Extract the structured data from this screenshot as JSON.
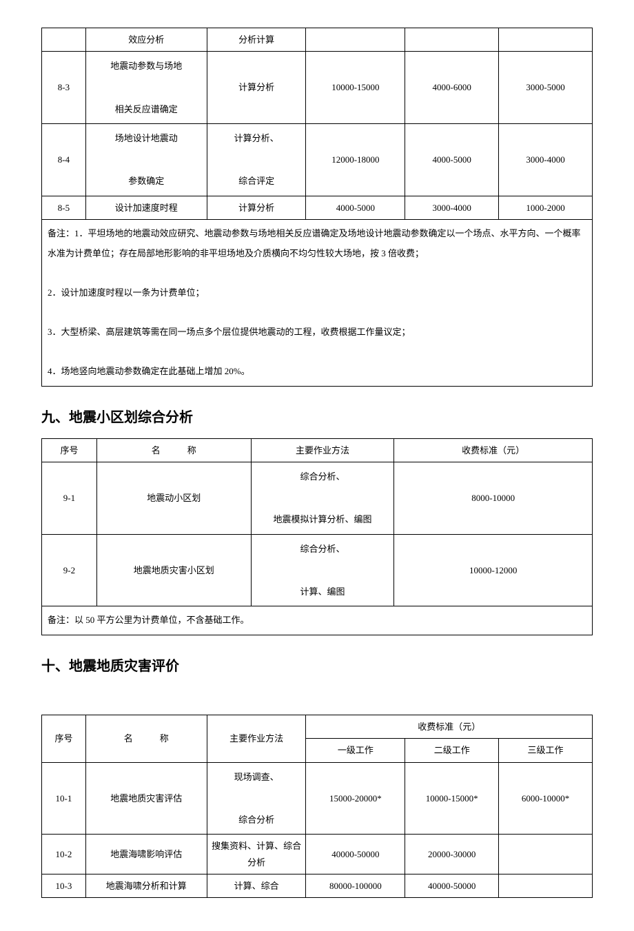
{
  "table8": {
    "rows": [
      {
        "id": "",
        "name": "效应分析",
        "method": "分析计算",
        "c1": "",
        "c2": "",
        "c3": ""
      },
      {
        "id": "8-3",
        "name": "地震动参数与场地\n\n相关反应谱确定",
        "method": "计算分析",
        "c1": "10000-15000",
        "c2": "4000-6000",
        "c3": "3000-5000"
      },
      {
        "id": "8-4",
        "name": "场地设计地震动\n\n参数确定",
        "method": "计算分析、\n\n综合评定",
        "c1": "12000-18000",
        "c2": "4000-5000",
        "c3": "3000-4000"
      },
      {
        "id": "8-5",
        "name": "设计加速度时程",
        "method": "计算分析",
        "c1": "4000-5000",
        "c2": "3000-4000",
        "c3": "1000-2000"
      }
    ],
    "note": "备注：1．平坦场地的地震动效应研究、地震动参数与场地相关反应谱确定及场地设计地震动参数确定以一个场点、水平方向、一个概率水准为计费单位；存在局部地形影响的非平坦场地及介质横向不均匀性较大场地，按 3 倍收费；\n\n2．设计加速度时程以一条为计费单位；\n\n3．大型桥梁、高层建筑等需在同一场点多个层位提供地震动的工程，收费根据工作量议定；\n\n4．场地竖向地震动参数确定在此基础上增加 20%。"
  },
  "section9": {
    "title": "九、地震小区划综合分析",
    "headers": {
      "seq": "序号",
      "name": "名　　　称",
      "method": "主要作业方法",
      "fee": "收费标准（元）"
    },
    "rows": [
      {
        "id": "9-1",
        "name": "地震动小区划",
        "method": "综合分析、\n\n地震模拟计算分析、编图",
        "fee": "8000-10000"
      },
      {
        "id": "9-2",
        "name": "地震地质灾害小区划",
        "method": "综合分析、\n\n计算、编图",
        "fee": "10000-12000"
      }
    ],
    "note": "备注：以 50 平方公里为计费单位，不含基础工作。"
  },
  "section10": {
    "title": "十、地震地质灾害评价",
    "headers": {
      "seq": "序号",
      "name": "名　　　称",
      "method": "主要作业方法",
      "fee": "收费标准（元）",
      "l1": "一级工作",
      "l2": "二级工作",
      "l3": "三级工作"
    },
    "rows": [
      {
        "id": "10-1",
        "name": "地震地质灾害评估",
        "method": "现场调查、\n\n综合分析",
        "c1": "15000-20000*",
        "c2": "10000-15000*",
        "c3": "6000-10000*"
      },
      {
        "id": "10-2",
        "name": "地震海啸影响评估",
        "method": "搜集资料、计算、综合分析",
        "c1": "40000-50000",
        "c2": "20000-30000",
        "c3": ""
      },
      {
        "id": "10-3",
        "name": "地震海啸分析和计算",
        "method": "计算、综合",
        "c1": "80000-100000",
        "c2": "40000-50000",
        "c3": ""
      }
    ]
  },
  "col_widths": {
    "t8": [
      "8%",
      "22%",
      "18%",
      "18%",
      "17%",
      "17%"
    ],
    "t9": [
      "10%",
      "28%",
      "26%",
      "36%"
    ],
    "t10": [
      "8%",
      "22%",
      "18%",
      "18%",
      "17%",
      "17%"
    ]
  }
}
